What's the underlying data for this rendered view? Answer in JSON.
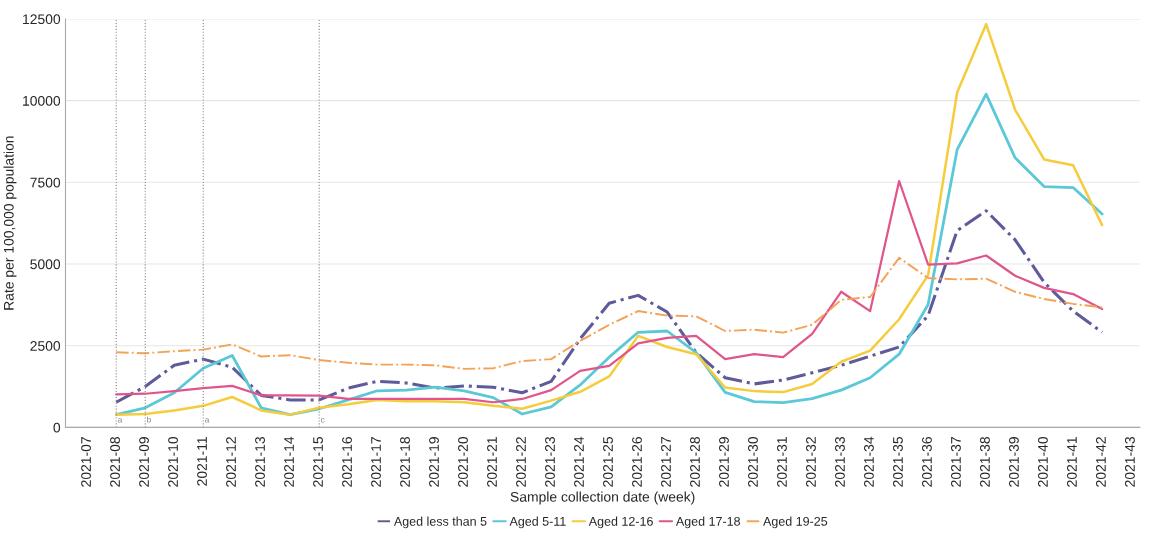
{
  "chart_data": {
    "type": "line",
    "xlabel": "Sample collection date (week)",
    "ylabel": "Rate per 100,000 population",
    "categories": [
      "2021-07",
      "2021-08",
      "2021-09",
      "2021-10",
      "2021-11",
      "2021-12",
      "2021-13",
      "2021-14",
      "2021-15",
      "2021-16",
      "2021-17",
      "2021-18",
      "2021-19",
      "2021-20",
      "2021-21",
      "2021-22",
      "2021-23",
      "2021-24",
      "2021-25",
      "2021-26",
      "2021-27",
      "2021-28",
      "2021-29",
      "2021-30",
      "2021-31",
      "2021-32",
      "2021-33",
      "2021-34",
      "2021-35",
      "2021-36",
      "2021-37",
      "2021-38",
      "2021-39",
      "2021-40",
      "2021-41",
      "2021-42",
      "2021-43"
    ],
    "ylim": [
      0,
      12500
    ],
    "yticks": [
      0,
      2500,
      5000,
      7500,
      10000,
      12500
    ],
    "grid": "y",
    "legend": "bottom",
    "series": [
      {
        "name": "Aged less than 5",
        "color": "#5e5b9a",
        "line_style": "dashed",
        "values": [
          null,
          770,
          1250,
          1900,
          2090,
          1840,
          980,
          840,
          840,
          1200,
          1410,
          1360,
          1200,
          1270,
          1230,
          1060,
          1410,
          2710,
          3800,
          4040,
          3530,
          2290,
          1520,
          1330,
          1450,
          1670,
          1900,
          2180,
          2460,
          3420,
          6020,
          6630,
          5740,
          4440,
          3560,
          2910,
          null
        ]
      },
      {
        "name": "Aged 5-11",
        "color": "#5bc8d8",
        "line_style": "solid",
        "values": [
          null,
          390,
          600,
          1060,
          1810,
          2200,
          600,
          390,
          570,
          840,
          1120,
          1140,
          1230,
          1120,
          910,
          410,
          630,
          1300,
          2150,
          2910,
          2950,
          2290,
          1070,
          790,
          760,
          880,
          1140,
          1520,
          2240,
          3760,
          8500,
          10200,
          8250,
          7370,
          7340,
          6530,
          null
        ]
      },
      {
        "name": "Aged 12-16",
        "color": "#f5cc3c",
        "line_style": "solid",
        "values": [
          null,
          390,
          410,
          520,
          660,
          930,
          520,
          390,
          600,
          710,
          840,
          800,
          800,
          770,
          660,
          570,
          820,
          1090,
          1560,
          2800,
          2460,
          2240,
          1220,
          1110,
          1080,
          1330,
          2010,
          2350,
          3310,
          4660,
          10250,
          12340,
          9720,
          8200,
          8020,
          6190,
          null
        ]
      },
      {
        "name": "Aged 17-18",
        "color": "#e0558c",
        "line_style": "solid",
        "values": [
          null,
          1010,
          1030,
          1110,
          1200,
          1270,
          980,
          980,
          970,
          870,
          870,
          870,
          870,
          870,
          770,
          870,
          1140,
          1730,
          1880,
          2570,
          2740,
          2800,
          2090,
          2240,
          2150,
          2860,
          4150,
          3560,
          7540,
          4980,
          5020,
          5260,
          4640,
          4270,
          4080,
          3620,
          null
        ]
      },
      {
        "name": "Aged 19-25",
        "color": "#f3a356",
        "line_style": "dashed",
        "values": [
          null,
          2300,
          2270,
          2330,
          2380,
          2540,
          2170,
          2210,
          2060,
          1980,
          1920,
          1920,
          1900,
          1790,
          1810,
          2030,
          2090,
          2650,
          3140,
          3560,
          3420,
          3400,
          2950,
          2990,
          2900,
          3140,
          3900,
          3990,
          5190,
          4570,
          4530,
          4550,
          4150,
          3930,
          3780,
          3670,
          null
        ]
      }
    ],
    "ref_lines": [
      {
        "axis": "x",
        "value": "2021-08",
        "label": "a",
        "color": "#888888",
        "line_style": "dotted"
      },
      {
        "axis": "x",
        "value": "2021-09",
        "label": "b",
        "color": "#888888",
        "line_style": "dotted"
      },
      {
        "axis": "x",
        "value": "2021-11",
        "label": "a",
        "color": "#888888",
        "line_style": "dotted"
      },
      {
        "axis": "x",
        "value": "2021-15",
        "label": "c",
        "color": "#888888",
        "line_style": "dotted"
      }
    ]
  }
}
